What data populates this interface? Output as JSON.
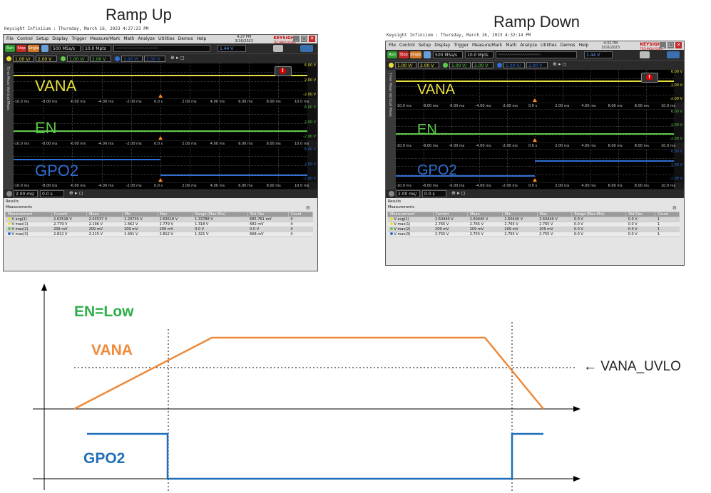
{
  "titles": {
    "ramp_up": "Ramp Up",
    "ramp_down": "Ramp Down"
  },
  "scope_up": {
    "caption": "Keysight Infiniium : Thursday, March 16, 2023 4:27:23 PM",
    "menu": [
      "File",
      "Control",
      "Setup",
      "Display",
      "Trigger",
      "Measure/Mark",
      "Math",
      "Analyze",
      "Utilities",
      "Demos",
      "Help"
    ],
    "clock_time": "4:27 PM",
    "clock_date": "3/16/2023",
    "brand": "KEYSIGHT",
    "brand_sub": "TECHNOLOGIES",
    "run": "Run",
    "stop": "Stop",
    "single": "Single",
    "sample_rate": "500 MSa/s",
    "memory": "10.0 Mpts",
    "trigger_level": "1.44 V",
    "ch1_scale": "1.00 V/",
    "ch1_offset": "2.00 V",
    "ch2_scale": "1.00 V/",
    "ch2_offset": "2.00 V",
    "ch3_scale": "1.00 V/",
    "ch3_offset": "2.00 V",
    "timebase": "2.00 ms/",
    "delay": "0.0 s",
    "side_label": "Time Meas Vertical Meas",
    "time_ticks": [
      "-10.0 ms",
      "-8.00 ms",
      "-6.00 ms",
      "-4.00 ms",
      "-2.00 ms",
      "0.0 s",
      "2.00 ms",
      "4.00 ms",
      "6.00 ms",
      "8.00 ms",
      "10.0 ms"
    ],
    "vscale_1": [
      "6.00 V",
      "2.00 V",
      "-2.00 V"
    ],
    "vscale_2": [
      "6.00 V",
      "2.00 V",
      "-2.00 V"
    ],
    "vscale_3": [
      "6.00 V",
      "2.00 V",
      "-2.00 V"
    ],
    "signal_1": "VANA",
    "signal_2": "EN",
    "signal_3": "GPO2",
    "results_title": "Results",
    "measurements_title": "Measurements",
    "table_headers": [
      "Measurement",
      "Current",
      "Mean",
      "Min",
      "Max",
      "Range (Max-Min)",
      "Std Dev",
      "Count"
    ],
    "rows": [
      [
        "V avg(1)",
        "2.63518 V",
        "2.03537 V",
        "1.29730 V",
        "2.63518 V",
        "1.33788 V",
        "685.761 mV",
        "4"
      ],
      [
        "V max(1)",
        "2.779 V",
        "2.196 V",
        "1.462 V",
        "2.779 V",
        "1.318 V",
        "682 mV",
        "4"
      ],
      [
        "V max(2)",
        "209 mV",
        "209 mV",
        "209 mV",
        "209 mV",
        "0.0 V",
        "0.0 V",
        "4"
      ],
      [
        "V max(3)",
        "2.812 V",
        "2.215 V",
        "1.491 V",
        "2.812 V",
        "1.321 V",
        "668 mV",
        "4"
      ]
    ]
  },
  "scope_down": {
    "caption": "Keysight Infiniium : Thursday, March 16, 2023 4:32:14 PM",
    "menu": [
      "File",
      "Control",
      "Setup",
      "Display",
      "Trigger",
      "Measure/Mark",
      "Math",
      "Analyze",
      "Utilities",
      "Demos",
      "Help"
    ],
    "clock_time": "4:32 PM",
    "clock_date": "3/16/2023",
    "brand": "KEYSIGHT",
    "brand_sub": "TECHNOLOGIES",
    "run": "Run",
    "stop": "Stop",
    "single": "Single",
    "sample_rate": "500 MSa/s",
    "memory": "10.0 Mpts",
    "trigger_level": "1.44 V",
    "ch1_scale": "1.00 V/",
    "ch1_offset": "2.00 V",
    "ch2_scale": "1.00 V/",
    "ch2_offset": "2.00 V",
    "ch3_scale": "1.00 V/",
    "ch3_offset": "2.00 V",
    "timebase": "2.00 ms/",
    "delay": "0.0 s",
    "side_label": "Time Meas Vertical Meas",
    "time_ticks": [
      "-10.0 ms",
      "-8.00 ms",
      "-6.00 ms",
      "-4.00 ms",
      "-2.00 ms",
      "0.0 s",
      "2.00 ms",
      "4.00 ms",
      "6.00 ms",
      "8.00 ms",
      "10.0 ms"
    ],
    "vscale_1": [
      "6.00 V",
      "2.00 V",
      "-2.00 V"
    ],
    "vscale_2": [
      "6.00 V",
      "2.00 V",
      "-2.00 V"
    ],
    "vscale_3": [
      "6.00 V",
      "2.00 V",
      "-2.00 V"
    ],
    "signal_1": "VANA",
    "signal_2": "EN",
    "signal_3": "GPO2",
    "results_title": "Results",
    "measurements_title": "Measurements",
    "table_headers": [
      "Measurement",
      "Current",
      "Mean",
      "Min",
      "Max",
      "Range (Max-Min)",
      "Std Dev",
      "Count"
    ],
    "rows": [
      [
        "V avg(1)",
        "2.60440 V",
        "2.60440 V",
        "2.60440 V",
        "2.60440 V",
        "0.0 V",
        "0.0 V",
        "1"
      ],
      [
        "V max(1)",
        "2.765 V",
        "2.765 V",
        "2.765 V",
        "2.765 V",
        "0.0 V",
        "0.0 V",
        "1"
      ],
      [
        "V max(2)",
        "209 mV",
        "209 mV",
        "209 mV",
        "209 mV",
        "0.0 V",
        "0.0 V",
        "1"
      ],
      [
        "V max(3)",
        "2.755 V",
        "2.755 V",
        "2.755 V",
        "2.755 V",
        "0.0 V",
        "0.0 V",
        "1"
      ]
    ]
  },
  "diagram": {
    "en_label": "EN=Low",
    "vana_label": "VANA",
    "uvlo_label": "← VANA_UVLO",
    "gpo2_label": "GPO2"
  },
  "colors": {
    "ch1": "#e8e03a",
    "ch2": "#5ec94a",
    "ch3": "#2f6fd6",
    "en_green": "#2bb04a",
    "vana_orange": "#ee8a3a",
    "gpo2_blue": "#1f6fb8"
  }
}
